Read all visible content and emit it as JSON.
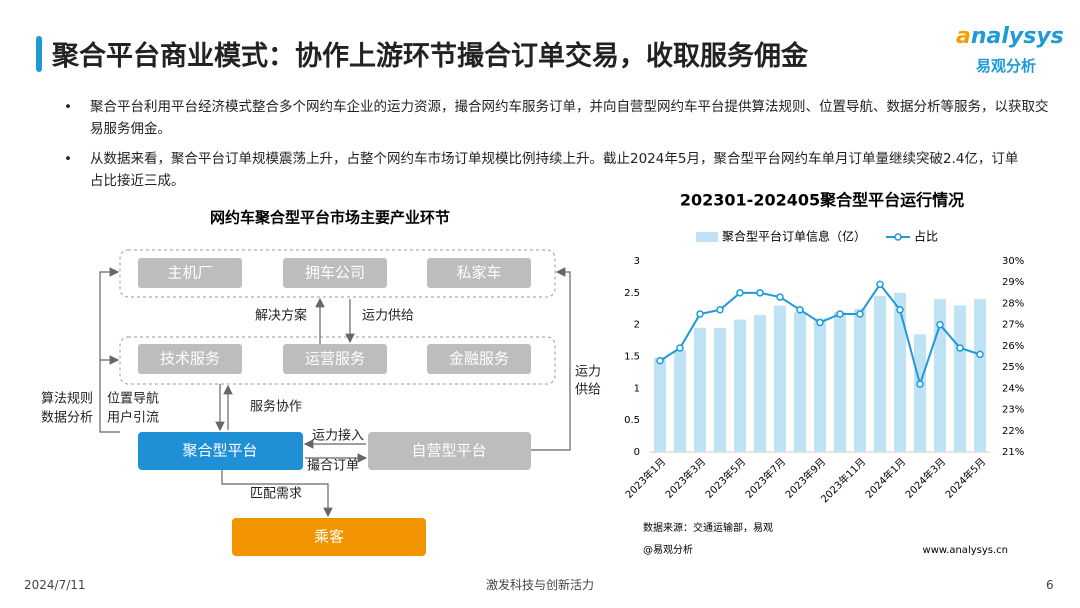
{
  "header": {
    "title": "聚合平台商业模式：协作上游环节撮合订单交易，收取服务佣金",
    "logo": "nalysys",
    "logo_sub": "易观分析"
  },
  "bullets": [
    "聚合平台利用平台经济模式整合多个网约车企业的运力资源，撮合网约车服务订单，并向自营型网约车平台提供算法规则、位置导航、数据分析等服务，以获取交易服务佣金。",
    "从数据来看，聚合平台订单规模震荡上升，占整个网约车市场订单规模比例持续上升。截止2024年5月，聚合型平台网约车单月订单量继续突破2.4亿，订单占比接近三成。"
  ],
  "diagram": {
    "title": "网约车聚合型平台市场主要产业环节",
    "nodes": [
      "主机厂",
      "拥车公司",
      "私家车",
      "技术服务",
      "运营服务",
      "金融服务",
      "聚合型平台",
      "自营型平台",
      "乘客"
    ],
    "edges": [
      "解决方案",
      "运力供给",
      "服务协作",
      "运力接入",
      "撮合订单",
      "匹配需求",
      "位置导航",
      "用户引流",
      "算法规则",
      "数据分析",
      "运力",
      "供给"
    ]
  },
  "chart_data": {
    "type": "bar_line",
    "title": "202301-202405聚合型平台运行情况",
    "categories": [
      "2023年1月",
      null,
      "2023年3月",
      null,
      "2023年5月",
      null,
      "2023年7月",
      null,
      "2023年9月",
      null,
      "2023年11月",
      null,
      "2024年1月",
      null,
      "2024年3月",
      null,
      "2024年5月"
    ],
    "series": [
      {
        "name": "聚合型平台订单信息（亿）",
        "color": "#bfe3f5",
        "values": [
          1.48,
          1.6,
          1.95,
          1.95,
          2.08,
          2.15,
          2.3,
          2.2,
          2.1,
          2.2,
          2.25,
          2.45,
          2.5,
          1.85,
          2.4,
          2.3,
          2.4
        ]
      },
      {
        "name": "占比",
        "color": "#1f9ad6",
        "axis": "y2",
        "values": [
          25.3,
          25.9,
          27.5,
          27.7,
          28.5,
          28.5,
          28.3,
          27.7,
          27.1,
          27.5,
          27.5,
          28.9,
          27.7,
          24.2,
          27.0,
          25.9,
          25.6
        ]
      }
    ],
    "ylim": [
      0,
      3
    ],
    "yticks": [
      0,
      0.5,
      1,
      1.5,
      2,
      2.5,
      3
    ],
    "y2lim": [
      21,
      30
    ],
    "y2ticks": [
      {
        "value": 21,
        "label": "21%"
      },
      {
        "value": 22,
        "label": "22%"
      },
      {
        "value": 23,
        "label": "23%"
      },
      {
        "value": 24,
        "label": "24%"
      },
      {
        "value": 25,
        "label": "25%"
      },
      {
        "value": 26,
        "label": "26%"
      },
      {
        "value": 27,
        "label": "27%"
      },
      {
        "value": 28,
        "label": "28%"
      },
      {
        "value": 29,
        "label": "29%"
      },
      {
        "value": 30,
        "label": "30%"
      }
    ],
    "grid": false,
    "legend": "top",
    "source": "数据来源：交通运输部，易观",
    "credit": "@易观分析",
    "site": "www.analysys.cn"
  },
  "footer": {
    "date": "2024/7/11",
    "slogan": "激发科技与创新活力",
    "page": "6"
  }
}
